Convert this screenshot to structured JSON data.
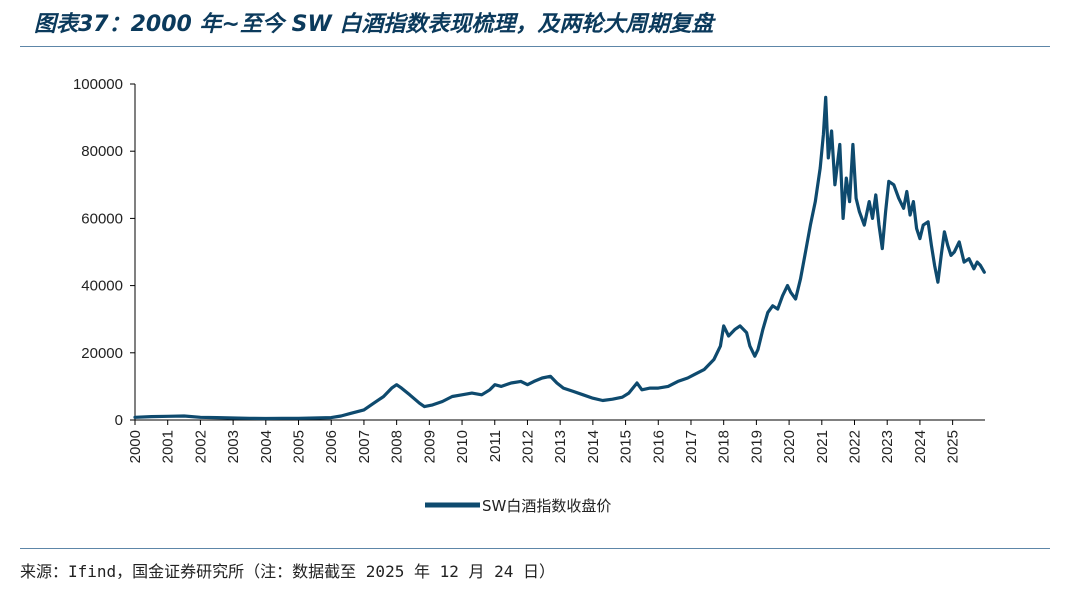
{
  "header": {
    "title": "图表37：2000 年~至今 SW 白酒指数表现梳理，及两轮大周期复盘"
  },
  "footer": {
    "source": "来源：Ifind，国金证券研究所（注：数据截至 2025 年 12 月 24 日）"
  },
  "colors": {
    "line": "#0e4a6e",
    "rule": "#5d86a8",
    "title": "#0b3a5c"
  },
  "chart_data": {
    "type": "line",
    "title": "",
    "xlabel": "",
    "ylabel": "",
    "ylim": [
      0,
      100000
    ],
    "xlim": [
      2000,
      2025.99
    ],
    "y_ticks": [
      0,
      20000,
      40000,
      60000,
      80000,
      100000
    ],
    "y_tick_labels": [
      "0",
      "20000",
      "40000",
      "60000",
      "80000",
      "100000"
    ],
    "x_ticks": [
      "2000",
      "2001",
      "2002",
      "2003",
      "2004",
      "2005",
      "2006",
      "2007",
      "2008",
      "2009",
      "2010",
      "2011",
      "2012",
      "2013",
      "2014",
      "2015",
      "2016",
      "2017",
      "2018",
      "2019",
      "2020",
      "2021",
      "2022",
      "2023",
      "2024",
      "2025"
    ],
    "legend": {
      "label": "SW白酒指数收盘价",
      "position": "bottom-center"
    },
    "series": [
      {
        "name": "SW白酒指数收盘价",
        "points": [
          [
            2000.0,
            800
          ],
          [
            2000.5,
            1000
          ],
          [
            2001.0,
            1100
          ],
          [
            2001.5,
            1200
          ],
          [
            2002.0,
            800
          ],
          [
            2002.5,
            700
          ],
          [
            2003.0,
            600
          ],
          [
            2003.5,
            500
          ],
          [
            2004.0,
            450
          ],
          [
            2004.5,
            500
          ],
          [
            2005.0,
            500
          ],
          [
            2005.5,
            600
          ],
          [
            2006.0,
            700
          ],
          [
            2006.3,
            1200
          ],
          [
            2006.6,
            2000
          ],
          [
            2007.0,
            3000
          ],
          [
            2007.3,
            5000
          ],
          [
            2007.6,
            7000
          ],
          [
            2007.85,
            9500
          ],
          [
            2008.0,
            10500
          ],
          [
            2008.15,
            9500
          ],
          [
            2008.4,
            7500
          ],
          [
            2008.7,
            5000
          ],
          [
            2008.85,
            4000
          ],
          [
            2009.1,
            4500
          ],
          [
            2009.4,
            5500
          ],
          [
            2009.7,
            7000
          ],
          [
            2010.0,
            7500
          ],
          [
            2010.3,
            8000
          ],
          [
            2010.6,
            7500
          ],
          [
            2010.85,
            9000
          ],
          [
            2011.0,
            10500
          ],
          [
            2011.2,
            10000
          ],
          [
            2011.5,
            11000
          ],
          [
            2011.8,
            11500
          ],
          [
            2012.0,
            10500
          ],
          [
            2012.2,
            11500
          ],
          [
            2012.45,
            12500
          ],
          [
            2012.7,
            13000
          ],
          [
            2012.9,
            11000
          ],
          [
            2013.1,
            9500
          ],
          [
            2013.4,
            8500
          ],
          [
            2013.7,
            7500
          ],
          [
            2014.0,
            6500
          ],
          [
            2014.3,
            5800
          ],
          [
            2014.6,
            6200
          ],
          [
            2014.9,
            6800
          ],
          [
            2015.1,
            8000
          ],
          [
            2015.35,
            11000
          ],
          [
            2015.5,
            9000
          ],
          [
            2015.75,
            9500
          ],
          [
            2016.0,
            9500
          ],
          [
            2016.3,
            10000
          ],
          [
            2016.6,
            11500
          ],
          [
            2016.9,
            12500
          ],
          [
            2017.1,
            13500
          ],
          [
            2017.4,
            15000
          ],
          [
            2017.7,
            18000
          ],
          [
            2017.9,
            22000
          ],
          [
            2018.0,
            28000
          ],
          [
            2018.15,
            25000
          ],
          [
            2018.35,
            27000
          ],
          [
            2018.5,
            28000
          ],
          [
            2018.7,
            26000
          ],
          [
            2018.8,
            22000
          ],
          [
            2018.95,
            19000
          ],
          [
            2019.05,
            21000
          ],
          [
            2019.2,
            27000
          ],
          [
            2019.35,
            32000
          ],
          [
            2019.5,
            34000
          ],
          [
            2019.65,
            33000
          ],
          [
            2019.8,
            37000
          ],
          [
            2019.95,
            40000
          ],
          [
            2020.05,
            38000
          ],
          [
            2020.2,
            36000
          ],
          [
            2020.35,
            42000
          ],
          [
            2020.5,
            50000
          ],
          [
            2020.65,
            58000
          ],
          [
            2020.8,
            65000
          ],
          [
            2020.95,
            75000
          ],
          [
            2021.05,
            85000
          ],
          [
            2021.12,
            96000
          ],
          [
            2021.2,
            78000
          ],
          [
            2021.3,
            86000
          ],
          [
            2021.4,
            70000
          ],
          [
            2021.55,
            82000
          ],
          [
            2021.65,
            60000
          ],
          [
            2021.75,
            72000
          ],
          [
            2021.85,
            65000
          ],
          [
            2021.95,
            82000
          ],
          [
            2022.05,
            66000
          ],
          [
            2022.15,
            62000
          ],
          [
            2022.3,
            58000
          ],
          [
            2022.45,
            65000
          ],
          [
            2022.55,
            60000
          ],
          [
            2022.65,
            67000
          ],
          [
            2022.75,
            58000
          ],
          [
            2022.85,
            51000
          ],
          [
            2022.95,
            62000
          ],
          [
            2023.05,
            71000
          ],
          [
            2023.2,
            70000
          ],
          [
            2023.35,
            66000
          ],
          [
            2023.5,
            63000
          ],
          [
            2023.6,
            68000
          ],
          [
            2023.7,
            61000
          ],
          [
            2023.8,
            65000
          ],
          [
            2023.9,
            57000
          ],
          [
            2024.0,
            54000
          ],
          [
            2024.1,
            58000
          ],
          [
            2024.25,
            59000
          ],
          [
            2024.35,
            52000
          ],
          [
            2024.45,
            46000
          ],
          [
            2024.55,
            41000
          ],
          [
            2024.65,
            49000
          ],
          [
            2024.75,
            56000
          ],
          [
            2024.85,
            52000
          ],
          [
            2024.95,
            49000
          ],
          [
            2025.05,
            50000
          ],
          [
            2025.2,
            53000
          ],
          [
            2025.35,
            47000
          ],
          [
            2025.5,
            48000
          ],
          [
            2025.65,
            45000
          ],
          [
            2025.75,
            47000
          ],
          [
            2025.85,
            46000
          ],
          [
            2025.97,
            44000
          ]
        ]
      }
    ]
  }
}
